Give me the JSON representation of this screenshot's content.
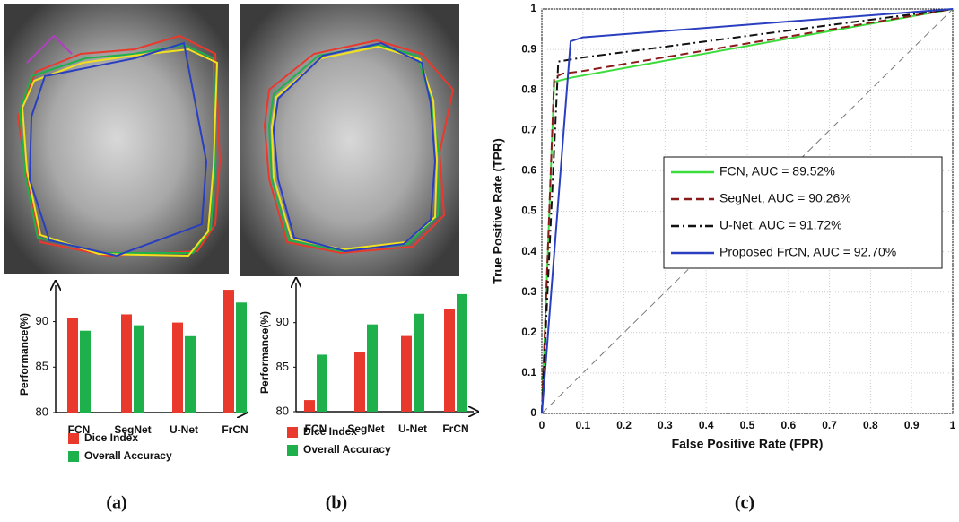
{
  "chart_data": [
    {
      "type": "bar",
      "panel": "(a)",
      "y_label": "Performance(%)",
      "categories": [
        "FCN",
        "SegNet",
        "U-Net",
        "FrCN"
      ],
      "series": [
        {
          "name": "Dice Index",
          "color": "#e8392c",
          "values": [
            90.4,
            90.8,
            89.9,
            93.5
          ]
        },
        {
          "name": "Overall Accuracy",
          "color": "#1db04b",
          "values": [
            89.0,
            89.6,
            88.4,
            92.1
          ]
        }
      ],
      "ylim": [
        80,
        94
      ],
      "yticks": [
        80,
        85,
        90
      ]
    },
    {
      "type": "bar",
      "panel": "(b)",
      "y_label": "Performance(%)",
      "categories": [
        "FCN",
        "SegNet",
        "U-Net",
        "FrCN"
      ],
      "series": [
        {
          "name": "Dice Index",
          "color": "#e8392c",
          "values": [
            81.3,
            86.7,
            88.5,
            91.5
          ]
        },
        {
          "name": "Overall Accuracy",
          "color": "#1db04b",
          "values": [
            86.4,
            89.8,
            91.0,
            93.2
          ]
        }
      ],
      "ylim": [
        80,
        94.5
      ],
      "yticks": [
        80,
        85,
        90
      ]
    },
    {
      "type": "line",
      "panel": "(c)",
      "x_label": "False Positive Rate (FPR)",
      "y_label": "True Positive Rate (TPR)",
      "series": [
        {
          "name": "FCN, AUC = 89.52%",
          "color": "#3ddc3d",
          "dash": "solid",
          "x": [
            0,
            0.03,
            0.07,
            1
          ],
          "values": [
            0,
            0.82,
            0.83,
            1
          ]
        },
        {
          "name": "SegNet, AUC = 90.26%",
          "color": "#8b1a1a",
          "dash": "dashed",
          "x": [
            0,
            0.03,
            0.05,
            0.09,
            1
          ],
          "values": [
            0,
            0.83,
            0.84,
            0.845,
            1
          ]
        },
        {
          "name": "U-Net, AUC = 91.72%",
          "color": "#111111",
          "dash": "dashdot",
          "x": [
            0,
            0.04,
            0.1,
            1
          ],
          "values": [
            0,
            0.87,
            0.88,
            1
          ]
        },
        {
          "name": "Proposed FrCN, AUC = 92.70%",
          "color": "#2a3fbf",
          "dash": "solid",
          "x": [
            0,
            0.07,
            0.1,
            1
          ],
          "values": [
            0,
            0.92,
            0.93,
            1
          ]
        }
      ],
      "xlim": [
        0,
        1
      ],
      "ylim": [
        0,
        1
      ],
      "xticks": [
        0,
        0.1,
        0.2,
        0.3,
        0.4,
        0.5,
        0.6,
        0.7,
        0.8,
        0.9,
        1
      ],
      "yticks": [
        0,
        0.1,
        0.2,
        0.3,
        0.4,
        0.5,
        0.6,
        0.7,
        0.8,
        0.9,
        1
      ],
      "grid": true
    }
  ]
}
